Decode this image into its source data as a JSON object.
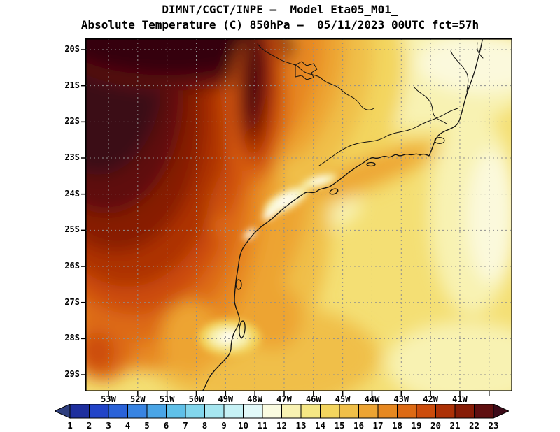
{
  "header": {
    "title_line1": "DIMNT/CGCT/INPE –  Model Eta05_M01_",
    "title_line2": "Absolute Temperature (C) 850hPa –  05/11/2023 00UTC fct=57h"
  },
  "axes": {
    "lat_labels": [
      "20S",
      "21S",
      "22S",
      "23S",
      "24S",
      "25S",
      "26S",
      "27S",
      "28S",
      "29S"
    ],
    "lon_labels": [
      "53W",
      "52W",
      "51W",
      "50W",
      "49W",
      "48W",
      "47W",
      "46W",
      "45W",
      "44W",
      "43W",
      "42W",
      "41W"
    ]
  },
  "colorbar": {
    "tick_labels": [
      "1",
      "2",
      "3",
      "4",
      "5",
      "6",
      "7",
      "8",
      "9",
      "10",
      "11",
      "12",
      "13",
      "14",
      "15",
      "16",
      "17",
      "18",
      "19",
      "20",
      "21",
      "22",
      "23"
    ],
    "colors": {
      "below_min": "#2e3e7e",
      "cells": [
        "#1e2f9e",
        "#2244c8",
        "#2a62d8",
        "#3884e2",
        "#4aa5e6",
        "#5fc0e8",
        "#82d6ec",
        "#a6e6f0",
        "#c6f1f5",
        "#e2f9f9",
        "#fafbe0",
        "#f8f2b2",
        "#f5e784",
        "#f3d55e",
        "#f0bf48",
        "#eda433",
        "#e78820",
        "#dd6a14",
        "#cc4c0c",
        "#ad3106",
        "#871c06",
        "#5f0f10"
      ],
      "above_max": "#3c0a18"
    }
  },
  "chart_data": {
    "type": "heatmap",
    "title": "DIMNT/CGCT/INPE –  Model Eta05_M01_",
    "subtitle": "Absolute Temperature (C) 850hPa –  05/11/2023 00UTC fct=57h",
    "variable": "Absolute Temperature",
    "units": "C",
    "level": "850hPa",
    "valid_time": "05/11/2023 00UTC",
    "forecast": "fct=57h",
    "x_axis": {
      "ticks": [
        "53W",
        "52W",
        "51W",
        "50W",
        "49W",
        "48W",
        "47W",
        "46W",
        "45W",
        "44W",
        "43W",
        "42W",
        "41W"
      ]
    },
    "y_axis": {
      "ticks": [
        "20S",
        "21S",
        "22S",
        "23S",
        "24S",
        "25S",
        "26S",
        "27S",
        "28S",
        "29S"
      ]
    },
    "grid": "dashed",
    "legend_position": "bottom",
    "colorbar_levels": [
      1,
      2,
      3,
      4,
      5,
      6,
      7,
      8,
      9,
      10,
      11,
      12,
      13,
      14,
      15,
      16,
      17,
      18,
      19,
      20,
      21,
      22,
      23
    ],
    "estimated_grid": {
      "lats": [
        "20S",
        "21S",
        "22S",
        "23S",
        "24S",
        "25S",
        "26S",
        "27S",
        "28S",
        "29S"
      ],
      "lons": [
        "53W",
        "52W",
        "51W",
        "50W",
        "49W",
        "48W",
        "47W",
        "46W",
        "45W",
        "44W",
        "43W",
        "42W",
        "41W"
      ],
      "values_C": [
        [
          23,
          23,
          23,
          23,
          22,
          20,
          17,
          15,
          14,
          13,
          13,
          12,
          12
        ],
        [
          23,
          23,
          23,
          23,
          22,
          19,
          17,
          16,
          15,
          14,
          13,
          12,
          12
        ],
        [
          23,
          23,
          23,
          22,
          21,
          18,
          17,
          15,
          14,
          14,
          13,
          13,
          13
        ],
        [
          22,
          22,
          22,
          21,
          19,
          17,
          16,
          15,
          14,
          14,
          14,
          13,
          13
        ],
        [
          21,
          21,
          20,
          19,
          18,
          16,
          15,
          15,
          14,
          14,
          14,
          14,
          13
        ],
        [
          20,
          20,
          19,
          18,
          17,
          15,
          16,
          15,
          14,
          14,
          14,
          14,
          14
        ],
        [
          19,
          19,
          18,
          17,
          16,
          15,
          16,
          15,
          15,
          14,
          14,
          14,
          14
        ],
        [
          18,
          18,
          17,
          17,
          16,
          15,
          16,
          16,
          15,
          14,
          14,
          14,
          14
        ],
        [
          18,
          17,
          17,
          16,
          14,
          15,
          16,
          16,
          15,
          14,
          14,
          14,
          13
        ],
        [
          17,
          17,
          16,
          16,
          15,
          16,
          16,
          16,
          15,
          14,
          14,
          13,
          13
        ]
      ]
    }
  }
}
